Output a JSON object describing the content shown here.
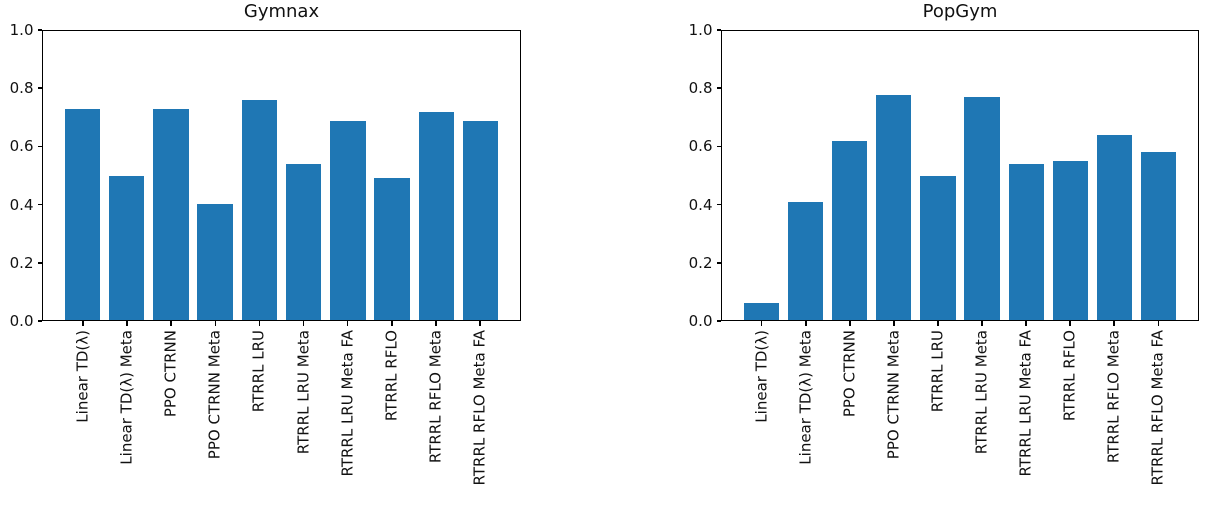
{
  "chart_data": [
    {
      "type": "bar",
      "title": "Gymnax",
      "categories": [
        "Linear TD(λ)",
        "Linear TD(λ) Meta",
        "PPO CTRNN",
        "PPO CTRNN Meta",
        "RTRRL LRU",
        "RTRRL LRU Meta",
        "RTRRL LRU Meta FA",
        "RTRRL RFLO",
        "RTRRL RFLO Meta",
        "RTRRL RFLO Meta FA"
      ],
      "values": [
        0.73,
        0.5,
        0.73,
        0.4,
        0.76,
        0.54,
        0.69,
        0.49,
        0.72,
        0.69
      ],
      "xlabel": "",
      "ylabel": "",
      "ylim": [
        0.0,
        1.0
      ],
      "yticks": [
        "0.0",
        "0.2",
        "0.4",
        "0.6",
        "0.8",
        "1.0"
      ],
      "grid": false,
      "bar_color": "#1f77b4",
      "xtick_rotation_deg": 90
    },
    {
      "type": "bar",
      "title": "PopGym",
      "categories": [
        "Linear TD(λ)",
        "Linear TD(λ) Meta",
        "PPO CTRNN",
        "PPO CTRNN Meta",
        "RTRRL LRU",
        "RTRRL LRU Meta",
        "RTRRL LRU Meta FA",
        "RTRRL RFLO",
        "RTRRL RFLO Meta",
        "RTRRL RFLO Meta FA"
      ],
      "values": [
        0.06,
        0.41,
        0.62,
        0.78,
        0.5,
        0.77,
        0.54,
        0.55,
        0.64,
        0.58
      ],
      "xlabel": "",
      "ylabel": "",
      "ylim": [
        0.0,
        1.0
      ],
      "yticks": [
        "0.0",
        "0.2",
        "0.4",
        "0.6",
        "0.8",
        "1.0"
      ],
      "grid": false,
      "bar_color": "#1f77b4",
      "xtick_rotation_deg": 90
    }
  ]
}
